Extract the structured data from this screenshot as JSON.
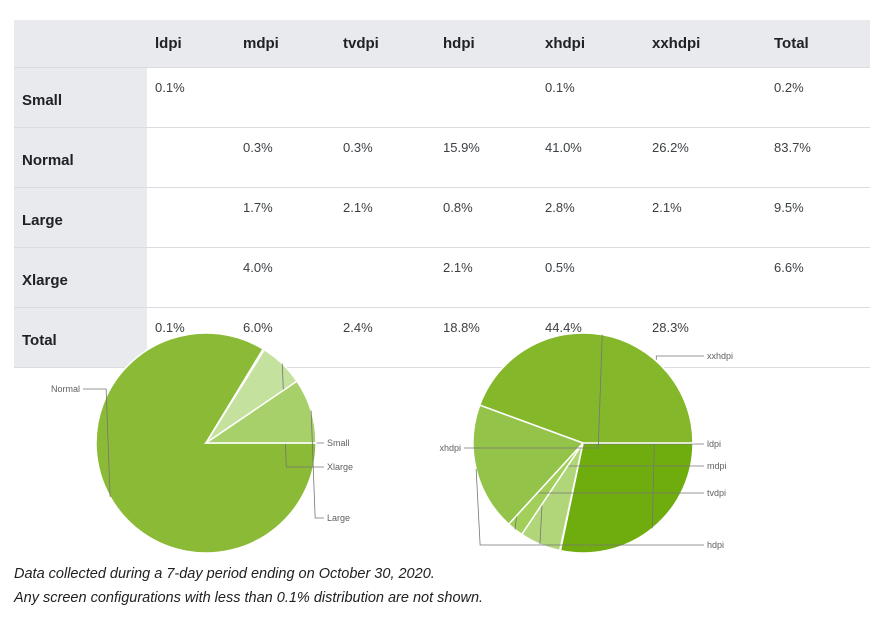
{
  "table": {
    "columns": [
      "",
      "ldpi",
      "mdpi",
      "tvdpi",
      "hdpi",
      "xhdpi",
      "xxhdpi",
      "Total"
    ],
    "rows": [
      {
        "label": "Small",
        "cells": [
          "0.1%",
          "",
          "",
          "",
          "0.1%",
          "",
          "0.2%"
        ]
      },
      {
        "label": "Normal",
        "cells": [
          "",
          "0.3%",
          "0.3%",
          "15.9%",
          "41.0%",
          "26.2%",
          "83.7%"
        ]
      },
      {
        "label": "Large",
        "cells": [
          "",
          "1.7%",
          "2.1%",
          "0.8%",
          "2.8%",
          "2.1%",
          "9.5%"
        ]
      },
      {
        "label": "Xlarge",
        "cells": [
          "",
          "4.0%",
          "",
          "2.1%",
          "0.5%",
          "",
          "6.6%"
        ]
      },
      {
        "label": "Total",
        "cells": [
          "0.1%",
          "6.0%",
          "2.4%",
          "18.8%",
          "44.4%",
          "28.3%",
          ""
        ]
      }
    ]
  },
  "chart_data": [
    {
      "type": "pie",
      "slices": [
        {
          "label": "Normal",
          "value": 83.7,
          "color": "#8bbb36"
        },
        {
          "label": "Small",
          "value": 0.2,
          "color": "#c5e19e"
        },
        {
          "label": "Xlarge",
          "value": 6.6,
          "color": "#c5e19e"
        },
        {
          "label": "Large",
          "value": 9.5,
          "color": "#a8d06a"
        }
      ]
    },
    {
      "type": "pie",
      "slices": [
        {
          "label": "xxhdpi",
          "value": 28.3,
          "color": "#6fad0f"
        },
        {
          "label": "ldpi",
          "value": 0.1,
          "color": "#7cb518"
        },
        {
          "label": "mdpi",
          "value": 6.0,
          "color": "#b1d67a"
        },
        {
          "label": "tvdpi",
          "value": 2.4,
          "color": "#a2cf5a"
        },
        {
          "label": "hdpi",
          "value": 18.8,
          "color": "#93c449"
        },
        {
          "label": "xhdpi",
          "value": 44.4,
          "color": "#84b82a"
        }
      ]
    }
  ],
  "footnotes": [
    "Data collected during a 7-day period ending on October 30, 2020.",
    "Any screen configurations with less than 0.1% distribution are not shown."
  ]
}
